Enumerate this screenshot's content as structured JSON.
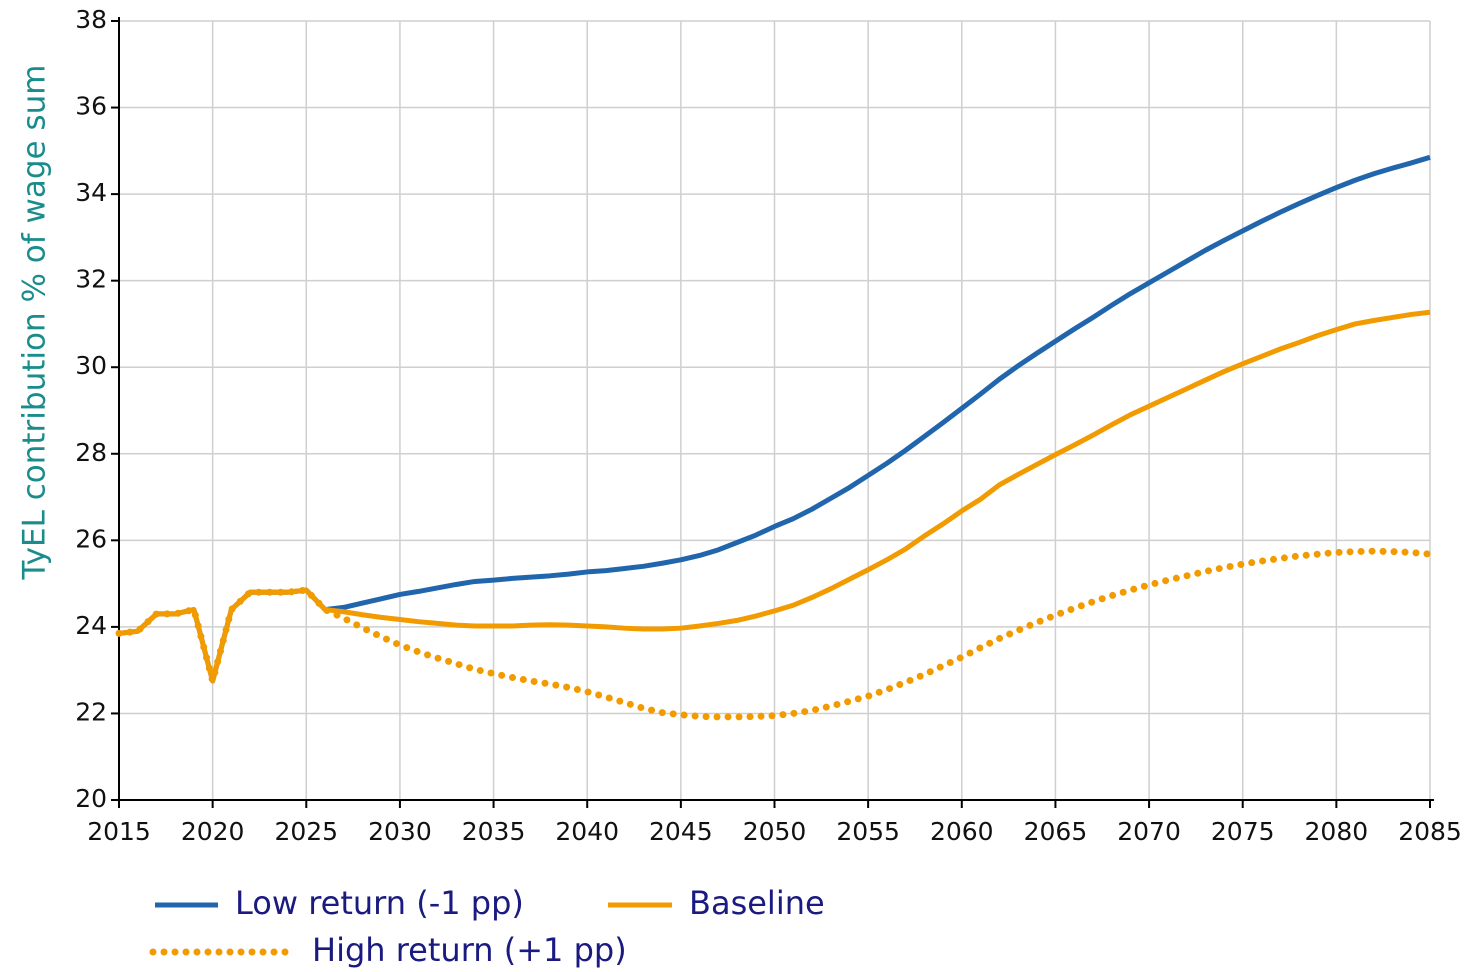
{
  "chart_data": {
    "type": "line",
    "ylabel": "TyEL contribution % of wage sum",
    "x": [
      2015,
      2016,
      2017,
      2018,
      2019,
      2020,
      2021,
      2022,
      2023,
      2024,
      2025,
      2026,
      2027,
      2028,
      2029,
      2030,
      2031,
      2032,
      2033,
      2034,
      2035,
      2036,
      2037,
      2038,
      2039,
      2040,
      2041,
      2042,
      2043,
      2044,
      2045,
      2046,
      2047,
      2048,
      2049,
      2050,
      2051,
      2052,
      2053,
      2054,
      2055,
      2056,
      2057,
      2058,
      2059,
      2060,
      2061,
      2062,
      2063,
      2064,
      2065,
      2066,
      2067,
      2068,
      2069,
      2070,
      2071,
      2072,
      2073,
      2074,
      2075,
      2076,
      2077,
      2078,
      2079,
      2080,
      2081,
      2082,
      2083,
      2084,
      2085
    ],
    "series": [
      {
        "name": "Low return (-1 pp)",
        "color": "#2166ac",
        "style": "solid",
        "values": [
          23.85,
          23.9,
          24.3,
          24.3,
          24.4,
          22.75,
          24.4,
          24.8,
          24.8,
          24.8,
          24.85,
          24.4,
          24.45,
          24.55,
          24.65,
          24.75,
          24.82,
          24.9,
          24.98,
          25.05,
          25.08,
          25.12,
          25.15,
          25.18,
          25.22,
          25.27,
          25.3,
          25.35,
          25.4,
          25.47,
          25.55,
          25.65,
          25.78,
          25.95,
          26.12,
          26.32,
          26.5,
          26.72,
          26.97,
          27.22,
          27.5,
          27.78,
          28.08,
          28.4,
          28.72,
          29.05,
          29.38,
          29.72,
          30.03,
          30.32,
          30.6,
          30.88,
          31.15,
          31.43,
          31.7,
          31.95,
          32.2,
          32.45,
          32.7,
          32.93,
          33.15,
          33.37,
          33.58,
          33.78,
          33.97,
          34.15,
          34.32,
          34.47,
          34.6,
          34.72,
          34.85
        ]
      },
      {
        "name": "High return (+1 pp)",
        "color": "#f29b00",
        "style": "dotted",
        "values": [
          23.85,
          23.9,
          24.3,
          24.3,
          24.4,
          22.75,
          24.4,
          24.8,
          24.8,
          24.8,
          24.85,
          24.4,
          24.2,
          23.98,
          23.77,
          23.58,
          23.42,
          23.28,
          23.15,
          23.02,
          22.92,
          22.83,
          22.75,
          22.68,
          22.6,
          22.5,
          22.38,
          22.25,
          22.12,
          22.02,
          21.97,
          21.93,
          21.92,
          21.92,
          21.93,
          21.95,
          22.0,
          22.07,
          22.17,
          22.28,
          22.4,
          22.55,
          22.72,
          22.9,
          23.1,
          23.3,
          23.52,
          23.73,
          23.92,
          24.1,
          24.27,
          24.43,
          24.58,
          24.72,
          24.85,
          24.97,
          25.08,
          25.18,
          25.28,
          25.37,
          25.45,
          25.52,
          25.58,
          25.64,
          25.68,
          25.72,
          25.74,
          25.75,
          25.74,
          25.72,
          25.68
        ]
      },
      {
        "name": "Baseline",
        "color": "#f29b00",
        "style": "solid",
        "values": [
          23.85,
          23.9,
          24.3,
          24.3,
          24.4,
          22.75,
          24.4,
          24.8,
          24.8,
          24.8,
          24.85,
          24.4,
          24.35,
          24.28,
          24.22,
          24.17,
          24.12,
          24.08,
          24.04,
          24.02,
          24.02,
          24.02,
          24.04,
          24.05,
          24.04,
          24.02,
          24.0,
          23.97,
          23.95,
          23.95,
          23.97,
          24.02,
          24.08,
          24.15,
          24.25,
          24.37,
          24.5,
          24.68,
          24.88,
          25.1,
          25.32,
          25.55,
          25.8,
          26.1,
          26.38,
          26.68,
          26.95,
          27.28,
          27.52,
          27.75,
          27.98,
          28.2,
          28.43,
          28.67,
          28.9,
          29.1,
          29.3,
          29.5,
          29.7,
          29.9,
          30.08,
          30.25,
          30.42,
          30.57,
          30.73,
          30.87,
          31.0,
          31.08,
          31.15,
          31.22,
          31.27
        ]
      }
    ],
    "xlim": [
      2015,
      2085
    ],
    "xticks": [
      2015,
      2020,
      2025,
      2030,
      2035,
      2040,
      2045,
      2050,
      2055,
      2060,
      2065,
      2070,
      2075,
      2080,
      2085
    ],
    "ylim": [
      20,
      38
    ],
    "yticks": [
      20,
      22,
      24,
      26,
      28,
      30,
      32,
      34,
      36,
      38
    ],
    "grid": true,
    "legend": "bottom-left"
  }
}
